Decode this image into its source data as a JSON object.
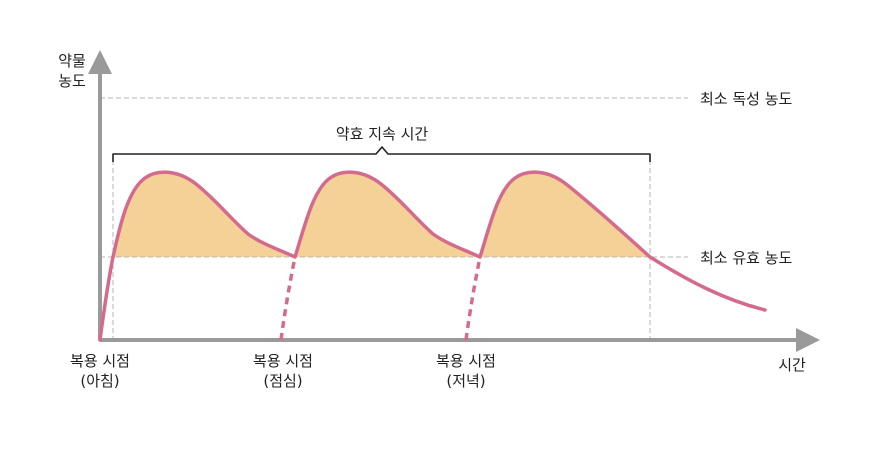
{
  "y_axis_label": [
    "약물",
    "농도"
  ],
  "x_axis_label": "시간",
  "toxic_level_label": "최소 독성 농도",
  "effective_level_label": "최소 유효 농도",
  "duration_label": "약효 지속 시간",
  "doses": [
    {
      "line1": "복용 시점",
      "line2": "(아침)"
    },
    {
      "line1": "복용 시점",
      "line2": "(점심)"
    },
    {
      "line1": "복용 시점",
      "line2": "(저녁)"
    }
  ],
  "colors": {
    "curve": "#d46a8e",
    "fill": "#f3d197",
    "axis": "#9a9a9a",
    "guide": "#b5b5b5",
    "bracket": "#222222"
  }
}
